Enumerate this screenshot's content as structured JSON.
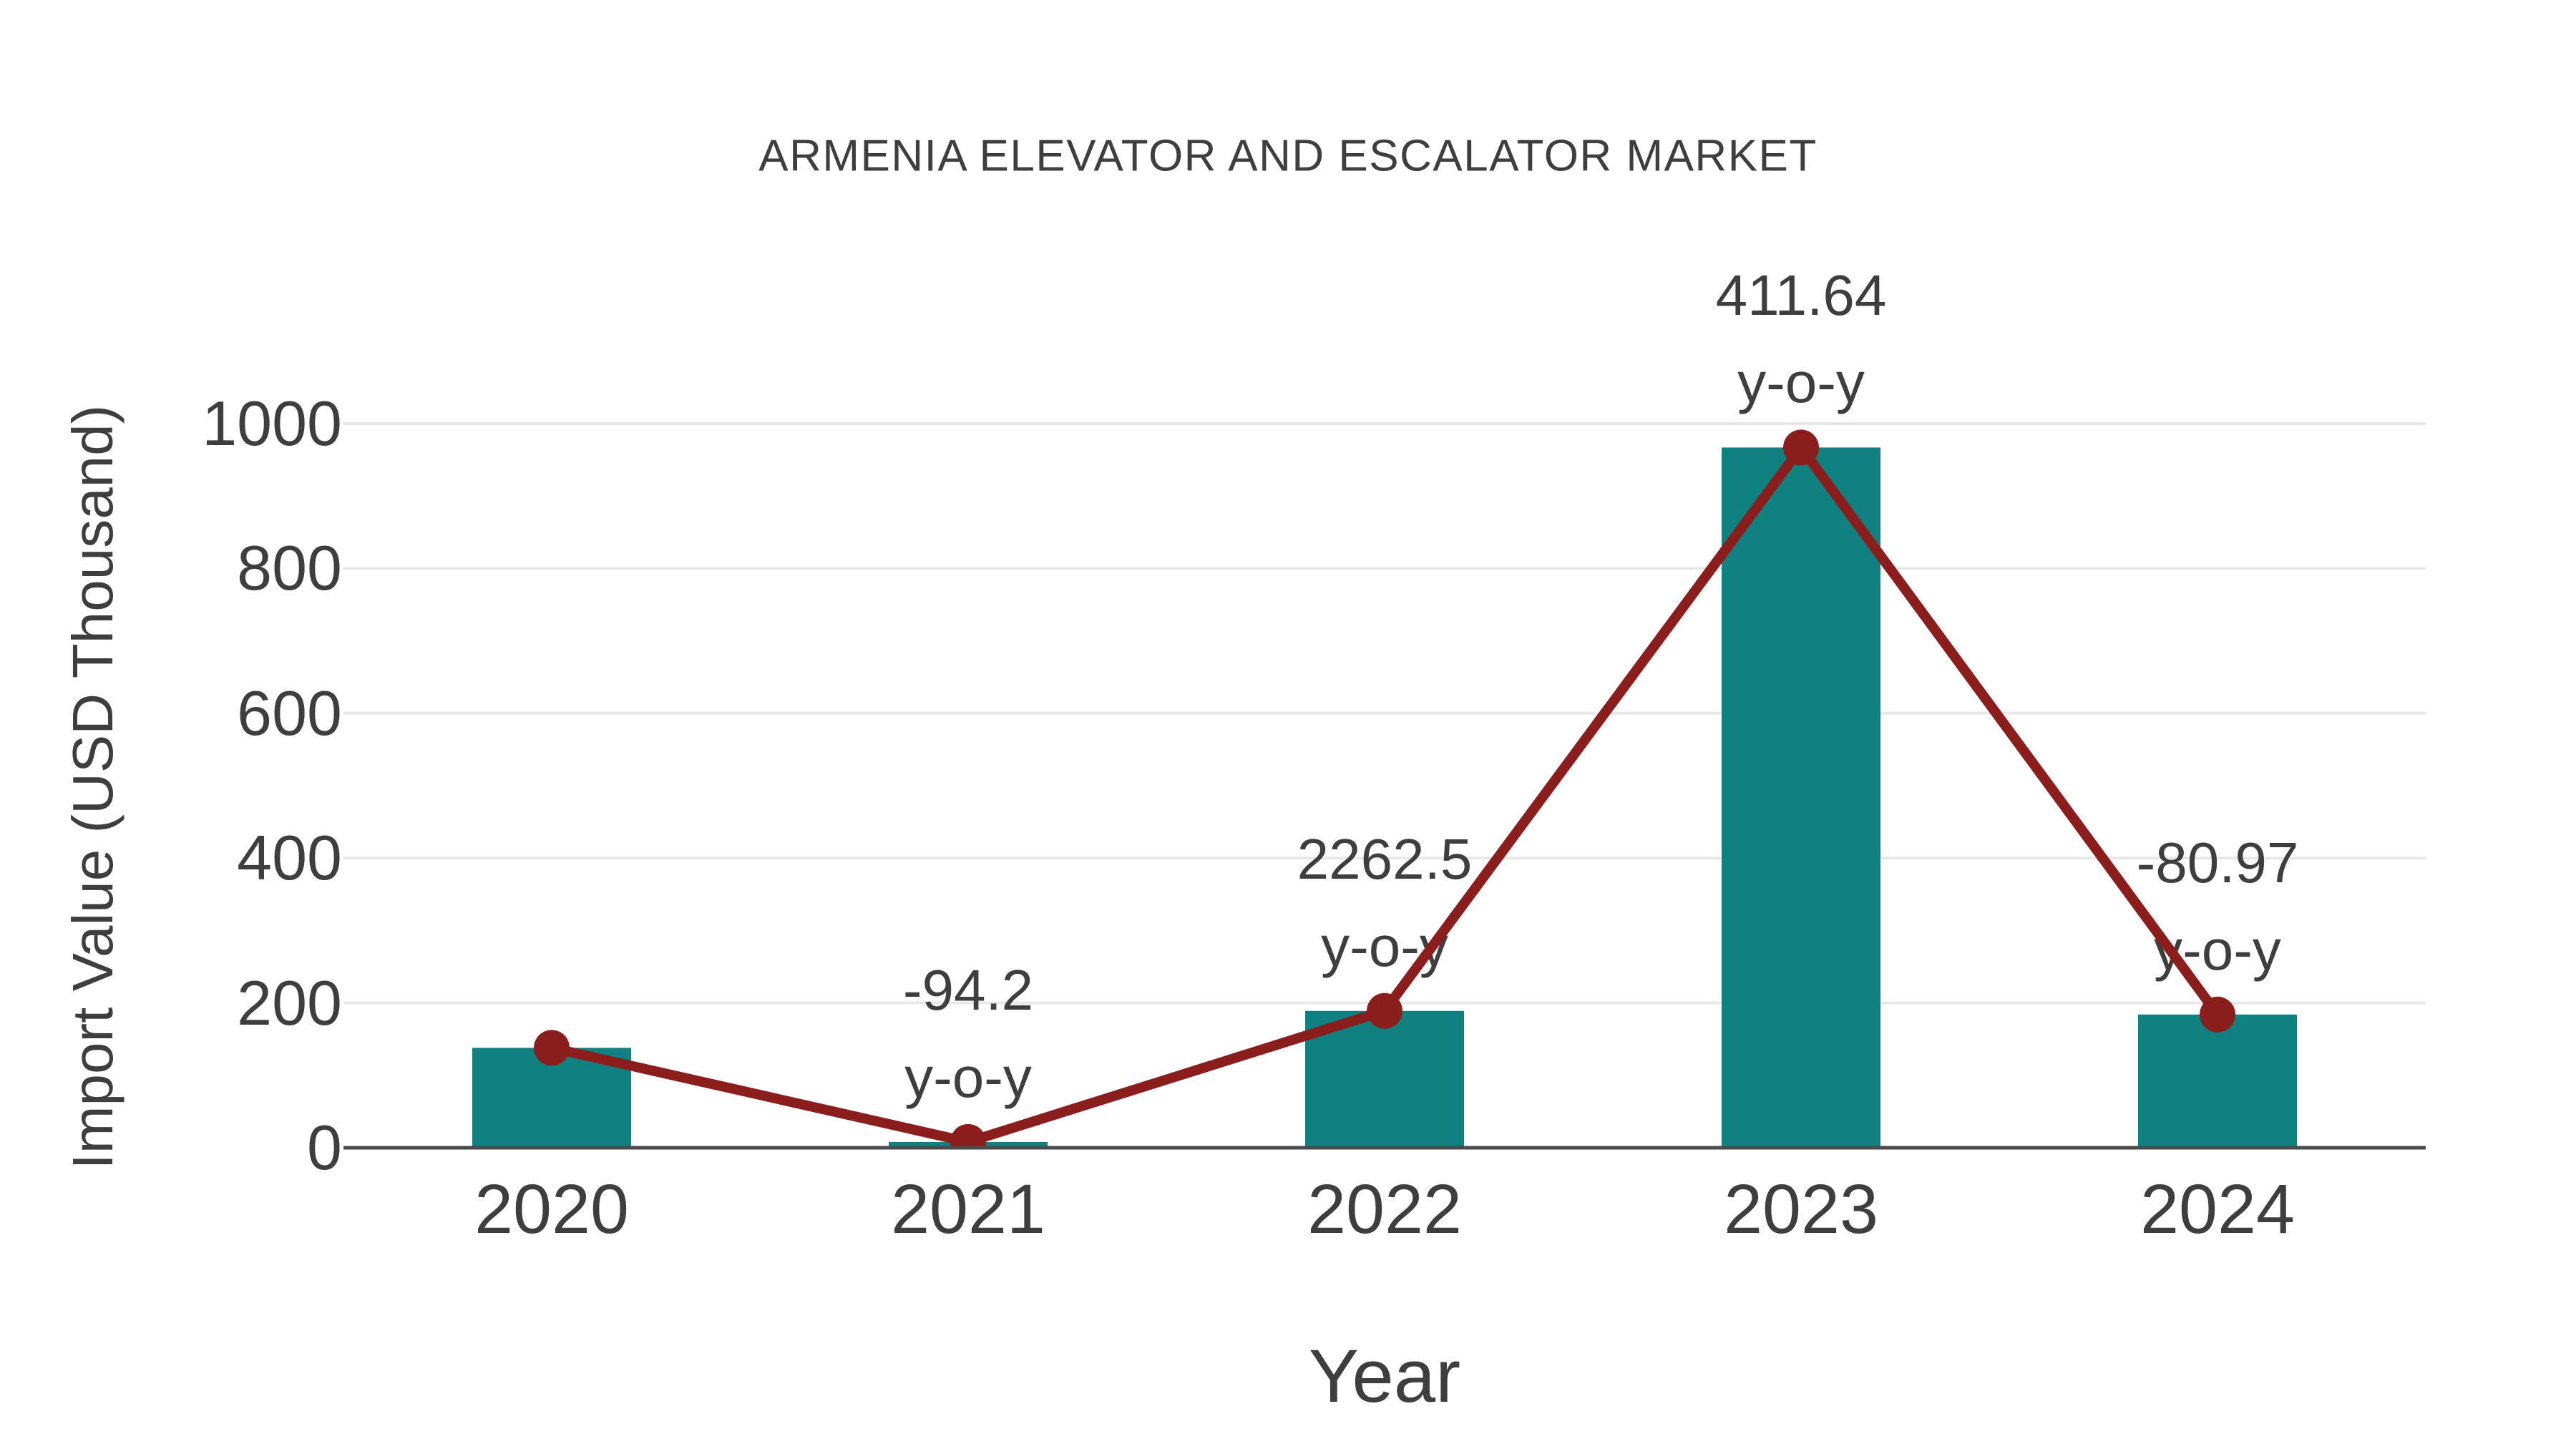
{
  "title": "ARMENIA ELEVATOR AND ESCALATOR MARKET",
  "colors": {
    "bar": "#0f8181",
    "line": "#8b1d1d",
    "marker": "#8b1d1d",
    "text": "#3e3e3e",
    "grid": "#e8e8e8",
    "axis": "#4a4a4a",
    "background": "#ffffff"
  },
  "chart_data": {
    "type": "bar",
    "title": "ARMENIA ELEVATOR AND ESCALATOR MARKET",
    "categories": [
      "2020",
      "2021",
      "2022",
      "2023",
      "2024"
    ],
    "series": [
      {
        "name": "Import Value",
        "type": "bar",
        "values": [
          138,
          8,
          189,
          967,
          184
        ]
      },
      {
        "name": "Import Value trend",
        "type": "line",
        "values": [
          138,
          8,
          189,
          967,
          184
        ]
      }
    ],
    "annotations": [
      {
        "category": "2021",
        "value_label": "-94.2",
        "suffix_label": "y-o-y"
      },
      {
        "category": "2022",
        "value_label": "2262.5",
        "suffix_label": "y-o-y"
      },
      {
        "category": "2023",
        "value_label": "411.64",
        "suffix_label": "y-o-y"
      },
      {
        "category": "2024",
        "value_label": "-80.97",
        "suffix_label": "y-o-y"
      }
    ],
    "xlabel": "Year",
    "ylabel": "Import Value (USD Thousand)",
    "ylim": [
      0,
      1000
    ],
    "yticks": [
      0,
      200,
      400,
      600,
      800,
      1000
    ],
    "grid": true,
    "legend_position": "none"
  }
}
